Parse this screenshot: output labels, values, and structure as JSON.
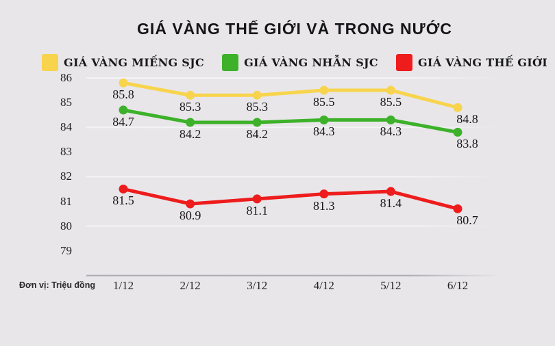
{
  "title": "GIÁ VÀNG THẾ GIỚI VÀ TRONG NƯỚC",
  "unit_note": "Đơn vị: Triệu đồng",
  "colors": {
    "background": "#e8e6e9",
    "gridline": "#f5f4f6",
    "axis_line": "#b3b1b5",
    "text": "#18181a"
  },
  "chart_data": {
    "type": "line",
    "title": "GIÁ VÀNG THẾ GIỚI VÀ TRONG NƯỚC",
    "categories": [
      "1/12",
      "2/12",
      "3/12",
      "4/12",
      "5/12",
      "6/12"
    ],
    "series": [
      {
        "name": "GIÁ VÀNG MIẾNG SJC",
        "color": "#F8D44D",
        "values": [
          85.8,
          85.3,
          85.3,
          85.5,
          85.5,
          84.8
        ]
      },
      {
        "name": "GIÁ VÀNG NHẪN SJC",
        "color": "#3DB12A",
        "values": [
          84.7,
          84.2,
          84.2,
          84.3,
          84.3,
          83.8
        ]
      },
      {
        "name": "GIÁ VÀNG THẾ GIỚI",
        "color": "#EE1C1C",
        "values": [
          81.5,
          80.9,
          81.1,
          81.3,
          81.4,
          80.7
        ]
      }
    ],
    "xlabel": "",
    "ylabel": "Đơn vị: Triệu đồng",
    "y_ticks": [
      86,
      85,
      84,
      83,
      82,
      81,
      80,
      79
    ],
    "ylim": [
      78,
      86.6
    ],
    "gridline_values": [
      86,
      84,
      82,
      80
    ],
    "axis_baseline_value": 78,
    "grid": true,
    "legend_position": "top",
    "point_labels": true
  }
}
